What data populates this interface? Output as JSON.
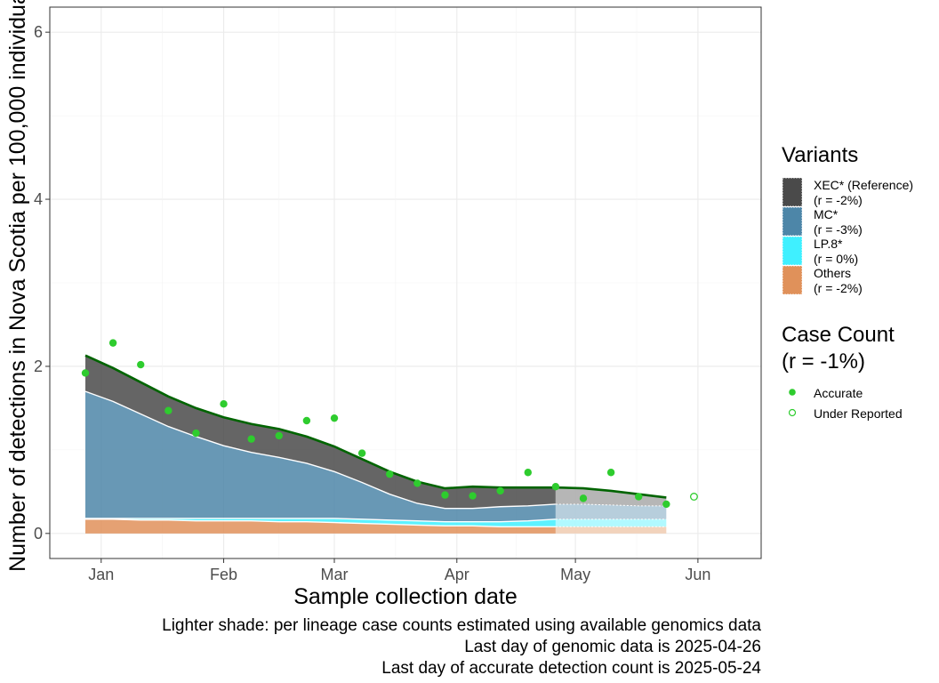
{
  "chart_data": {
    "type": "area",
    "xlabel": "Sample collection date",
    "ylabel": "Number of detections in Nova Scotia per 100,000 individuals",
    "x_ticks": [
      "Jan",
      "Feb",
      "Mar",
      "Apr",
      "May",
      "Jun"
    ],
    "x_tick_dates": [
      "2025-01-01",
      "2025-02-01",
      "2025-03-01",
      "2025-04-01",
      "2025-05-01",
      "2025-06-01"
    ],
    "xlim": [
      "2024-12-19",
      "2025-06-17"
    ],
    "y_ticks": [
      0,
      2,
      4,
      6
    ],
    "ylim": [
      -0.3,
      6.3
    ],
    "grid": true,
    "legend_position": "right",
    "x": [
      "2024-12-28",
      "2025-01-04",
      "2025-01-11",
      "2025-01-18",
      "2025-01-25",
      "2025-02-01",
      "2025-02-08",
      "2025-02-15",
      "2025-02-22",
      "2025-03-01",
      "2025-03-08",
      "2025-03-15",
      "2025-03-22",
      "2025-03-29",
      "2025-04-05",
      "2025-04-12",
      "2025-04-19",
      "2025-04-26",
      "2025-05-03",
      "2025-05-10",
      "2025-05-17",
      "2025-05-24"
    ],
    "series": [
      {
        "name": "Others",
        "legend_label": "Others",
        "r_label": "(r = -2%)",
        "color": "#e0915a",
        "values": [
          0.17,
          0.17,
          0.16,
          0.16,
          0.15,
          0.15,
          0.15,
          0.14,
          0.14,
          0.13,
          0.12,
          0.11,
          0.1,
          0.09,
          0.09,
          0.08,
          0.08,
          0.08,
          0.08,
          0.08,
          0.08,
          0.08
        ]
      },
      {
        "name": "LP.8*",
        "legend_label": "LP.8*",
        "r_label": "(r = 0%)",
        "color": "#3ff0ff",
        "values": [
          0.01,
          0.01,
          0.02,
          0.02,
          0.03,
          0.03,
          0.03,
          0.04,
          0.04,
          0.05,
          0.05,
          0.05,
          0.05,
          0.05,
          0.05,
          0.06,
          0.07,
          0.09,
          0.09,
          0.09,
          0.09,
          0.09
        ]
      },
      {
        "name": "MC*",
        "legend_label": "MC*",
        "r_label": "(r = -3%)",
        "color": "#4d86a8",
        "values": [
          1.52,
          1.4,
          1.25,
          1.1,
          0.98,
          0.87,
          0.79,
          0.73,
          0.66,
          0.56,
          0.44,
          0.31,
          0.21,
          0.16,
          0.16,
          0.18,
          0.18,
          0.18,
          0.18,
          0.17,
          0.16,
          0.16
        ]
      },
      {
        "name": "XEC*",
        "legend_label": "XEC* (Reference)",
        "r_label": "(r = -2%)",
        "color": "#4a4a4a",
        "values": [
          0.42,
          0.4,
          0.38,
          0.36,
          0.34,
          0.33,
          0.34,
          0.34,
          0.32,
          0.3,
          0.28,
          0.27,
          0.26,
          0.24,
          0.26,
          0.23,
          0.22,
          0.2,
          0.19,
          0.17,
          0.14,
          0.1
        ]
      }
    ],
    "total_values": [
      2.13,
      1.98,
      1.81,
      1.64,
      1.5,
      1.39,
      1.31,
      1.25,
      1.16,
      1.04,
      0.89,
      0.74,
      0.62,
      0.54,
      0.56,
      0.55,
      0.55,
      0.55,
      0.54,
      0.51,
      0.47,
      0.43
    ],
    "genomic_cutoff": "2025-04-26",
    "case_count": {
      "legend_title": "Case Count",
      "legend_subtitle": "(r = -1%)",
      "accurate_label": "Accurate",
      "under_reported_label": "Under Reported",
      "color": "#2ecc2e",
      "accurate": [
        {
          "x": "2024-12-28",
          "y": 1.92
        },
        {
          "x": "2025-01-04",
          "y": 2.28
        },
        {
          "x": "2025-01-11",
          "y": 2.02
        },
        {
          "x": "2025-01-18",
          "y": 1.47
        },
        {
          "x": "2025-01-25",
          "y": 1.2
        },
        {
          "x": "2025-02-01",
          "y": 1.55
        },
        {
          "x": "2025-02-08",
          "y": 1.13
        },
        {
          "x": "2025-02-15",
          "y": 1.17
        },
        {
          "x": "2025-02-22",
          "y": 1.35
        },
        {
          "x": "2025-03-01",
          "y": 1.38
        },
        {
          "x": "2025-03-08",
          "y": 0.96
        },
        {
          "x": "2025-03-15",
          "y": 0.71
        },
        {
          "x": "2025-03-22",
          "y": 0.6
        },
        {
          "x": "2025-03-29",
          "y": 0.46
        },
        {
          "x": "2025-04-05",
          "y": 0.45
        },
        {
          "x": "2025-04-12",
          "y": 0.51
        },
        {
          "x": "2025-04-19",
          "y": 0.73
        },
        {
          "x": "2025-04-26",
          "y": 0.56
        },
        {
          "x": "2025-05-03",
          "y": 0.42
        },
        {
          "x": "2025-05-10",
          "y": 0.73
        },
        {
          "x": "2025-05-17",
          "y": 0.44
        },
        {
          "x": "2025-05-24",
          "y": 0.35
        }
      ],
      "under_reported": [
        {
          "x": "2025-05-31",
          "y": 0.44
        }
      ]
    },
    "variants_legend_title": "Variants",
    "captions": [
      "Lighter shade: per lineage case counts estimated using available genomics data",
      "Last day of genomic data is 2025-04-26",
      "Last day of accurate detection count is 2025-05-24"
    ]
  }
}
